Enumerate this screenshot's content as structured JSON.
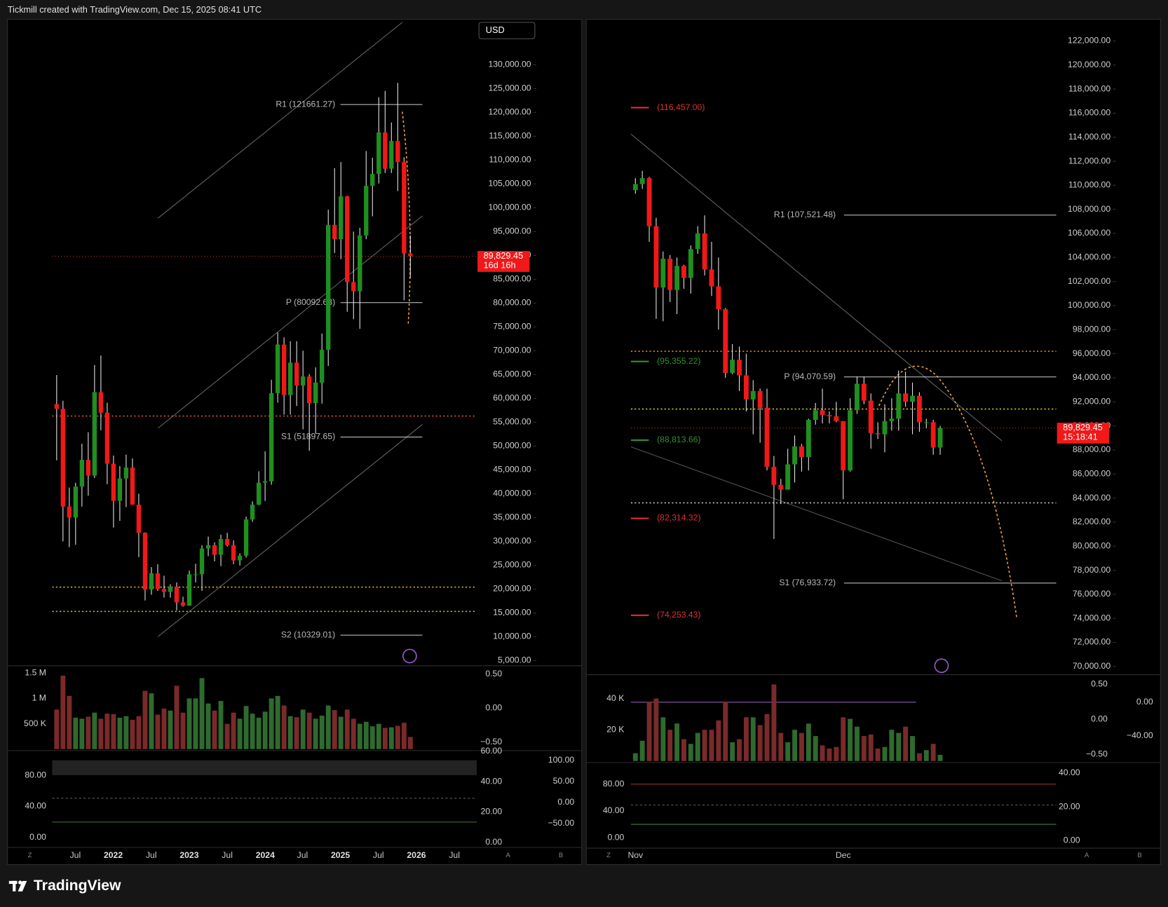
{
  "header": "Tickmill created with TradingView.com, Dec 15, 2025 08:41 UTC",
  "logo": "TradingView",
  "currency": "USD",
  "buttons": {
    "z": "Z",
    "a": "A",
    "b": "B"
  },
  "left": {
    "ylim": [
      4062.5,
      139375
    ],
    "yticks": [
      {
        "value": 130000,
        "label": "130,000.00"
      },
      {
        "value": 125000,
        "label": "125,000.00"
      },
      {
        "value": 120000,
        "label": "120,000.00"
      },
      {
        "value": 115000,
        "label": "115,000.00"
      },
      {
        "value": 110000,
        "label": "110,000.00"
      },
      {
        "value": 105000,
        "label": "105,000.00"
      },
      {
        "value": 100000,
        "label": "100,000.00"
      },
      {
        "value": 95000,
        "label": "95,000.00"
      },
      {
        "value": 90000,
        "label": "90,000.00"
      },
      {
        "value": 85000,
        "label": "85,000.00"
      },
      {
        "value": 80000,
        "label": "80,000.00"
      },
      {
        "value": 75000,
        "label": "75,000.00"
      },
      {
        "value": 70000,
        "label": "70,000.00"
      },
      {
        "value": 65000,
        "label": "65,000.00"
      },
      {
        "value": 60000,
        "label": "60,000.00"
      },
      {
        "value": 55000,
        "label": "55,000.00"
      },
      {
        "value": 50000,
        "label": "50,000.00"
      },
      {
        "value": 45000,
        "label": "45,000.00"
      },
      {
        "value": 40000,
        "label": "40,000.00"
      },
      {
        "value": 35000,
        "label": "35,000.00"
      },
      {
        "value": 30000,
        "label": "30,000.00"
      },
      {
        "value": 25000,
        "label": "25,000.00"
      },
      {
        "value": 20000,
        "label": "20,000.00"
      },
      {
        "value": 15000,
        "label": "15,000.00"
      },
      {
        "value": 10000,
        "label": "10,000.00"
      },
      {
        "value": 5000,
        "label": "5,000.00"
      }
    ],
    "candles": [
      [
        58800,
        64900,
        47000,
        57800
      ],
      [
        57800,
        59500,
        30000,
        37300
      ],
      [
        37300,
        41300,
        28800,
        35000
      ],
      [
        35000,
        42300,
        29300,
        41500
      ],
      [
        41500,
        50500,
        37300,
        47100
      ],
      [
        47100,
        52900,
        39600,
        43800
      ],
      [
        43800,
        67000,
        43300,
        61300
      ],
      [
        61300,
        69000,
        53300,
        57000
      ],
      [
        57000,
        59100,
        42000,
        46300
      ],
      [
        46300,
        48000,
        32900,
        38500
      ],
      [
        38500,
        45800,
        34300,
        43200
      ],
      [
        43200,
        48200,
        37200,
        45500
      ],
      [
        45500,
        47400,
        37700,
        37700
      ],
      [
        37700,
        40000,
        26700,
        31800
      ],
      [
        31800,
        31900,
        17600,
        19900
      ],
      [
        19900,
        24600,
        18800,
        23300
      ],
      [
        23300,
        25200,
        19600,
        20000
      ],
      [
        20000,
        22800,
        18200,
        19400
      ],
      [
        19400,
        21000,
        18200,
        20500
      ],
      [
        20500,
        21400,
        15500,
        17200
      ],
      [
        17200,
        18400,
        16300,
        16500
      ],
      [
        16500,
        23900,
        16500,
        23100
      ],
      [
        23100,
        25300,
        21400,
        23100
      ],
      [
        23100,
        29200,
        19600,
        28500
      ],
      [
        28500,
        31000,
        26900,
        29200
      ],
      [
        29200,
        29800,
        25800,
        27200
      ],
      [
        27200,
        31400,
        24800,
        30500
      ],
      [
        30500,
        31800,
        28900,
        29200
      ],
      [
        29200,
        30200,
        25200,
        26000
      ],
      [
        26000,
        27500,
        24900,
        27000
      ],
      [
        27000,
        35200,
        26600,
        34600
      ],
      [
        34600,
        38400,
        34100,
        37700
      ],
      [
        37700,
        44700,
        37600,
        42300
      ],
      [
        42300,
        48900,
        38500,
        42600
      ],
      [
        42600,
        63900,
        41900,
        61100
      ],
      [
        61100,
        73800,
        59100,
        71300
      ],
      [
        71300,
        72800,
        56600,
        60700
      ],
      [
        60700,
        72000,
        56600,
        67500
      ],
      [
        67500,
        72000,
        58400,
        62700
      ],
      [
        62700,
        70000,
        53500,
        64600
      ],
      [
        64600,
        65100,
        49000,
        59000
      ],
      [
        59000,
        66500,
        52600,
        63300
      ],
      [
        63300,
        73600,
        58900,
        70200
      ],
      [
        70200,
        99600,
        66800,
        96400
      ],
      [
        96400,
        108300,
        90500,
        93400
      ],
      [
        93400,
        109600,
        89200,
        102400
      ],
      [
        102400,
        102500,
        78200,
        84400
      ],
      [
        84400,
        95000,
        76600,
        82500
      ],
      [
        82500,
        95800,
        74600,
        94200
      ],
      [
        94200,
        111900,
        93400,
        104600
      ],
      [
        104600,
        110500,
        98200,
        107100
      ],
      [
        107100,
        123200,
        105100,
        115800
      ],
      [
        115800,
        124500,
        107300,
        108200
      ],
      [
        108200,
        117900,
        107300,
        114000
      ],
      [
        114000,
        126200,
        103500,
        109600
      ],
      [
        109600,
        110600,
        80600,
        90400
      ],
      [
        90400,
        94200,
        85300,
        89829.45
      ]
    ],
    "volume": {
      "lim": [
        0,
        1630000
      ],
      "ticks": [
        {
          "value": 1500000,
          "label": "1.5 M"
        },
        {
          "value": 1000000,
          "label": "1 M"
        },
        {
          "value": 500000,
          "label": "500 K"
        }
      ],
      "values": [
        780000,
        1450000,
        1050000,
        620000,
        600000,
        640000,
        720000,
        600000,
        700000,
        690000,
        620000,
        650000,
        580000,
        650000,
        1150000,
        1100000,
        680000,
        800000,
        760000,
        1250000,
        720000,
        1000000,
        1000000,
        1400000,
        900000,
        760000,
        950000,
        500000,
        720000,
        600000,
        850000,
        700000,
        620000,
        740000,
        1000000,
        1050000,
        860000,
        650000,
        630000,
        780000,
        720000,
        600000,
        660000,
        860000,
        770000,
        640000,
        780000,
        600000,
        500000,
        540000,
        450000,
        500000,
        420000,
        430000,
        460000,
        520000,
        240000
      ]
    },
    "volume_scales": [
      {
        "lim": [
          -0.6,
          0.61
        ],
        "ticks": [
          {
            "value": 0.5,
            "label": "0.50"
          },
          {
            "value": 0,
            "label": "0.00"
          },
          {
            "value": -0.5,
            "label": "−0.50"
          }
        ]
      }
    ],
    "osc_scales": [
      {
        "lim": [
          -12,
          111
        ],
        "ticks": [
          {
            "value": 80,
            "label": "80.00"
          },
          {
            "value": 40,
            "label": "40.00"
          },
          {
            "value": 0,
            "label": "0.00"
          }
        ]
      },
      {
        "lim": [
          -2.9,
          60
        ],
        "ticks": [
          {
            "value": 60,
            "label": "60.00"
          },
          {
            "value": 40,
            "label": "40.00"
          },
          {
            "value": 20,
            "label": "20.00"
          },
          {
            "value": 0,
            "label": "0.00"
          }
        ]
      },
      {
        "lim": [
          -105,
          121
        ],
        "ticks": [
          {
            "value": 100,
            "label": "100.00"
          },
          {
            "value": 50,
            "label": "50.00"
          },
          {
            "value": 0,
            "label": "0.00"
          },
          {
            "value": -50,
            "label": "−50.00"
          }
        ]
      }
    ],
    "levels": [
      {
        "label": "R1 (121661.27)",
        "value": 121661.27
      },
      {
        "label": "P (80092.63)",
        "value": 80092.63
      },
      {
        "label": "S1 (51897.65)",
        "value": 51897.65
      },
      {
        "label": "S2 (10329.01)",
        "value": 10329.01
      }
    ],
    "marks": [],
    "dotted": [
      {
        "value": 56300,
        "color": "#e05030"
      },
      {
        "value": 20400,
        "color": "#e8c020"
      },
      {
        "value": 15300,
        "color": "#9acd32"
      }
    ],
    "last": {
      "value": 89829.45,
      "label": "89,829.45",
      "countdown": "16d 16h"
    },
    "time_labels": [
      "Jul",
      "2022",
      "Jul",
      "2023",
      "Jul",
      "2024",
      "Jul",
      "2025",
      "Jul",
      "2026",
      "Jul"
    ]
  },
  "right": {
    "ylim": [
      69381,
      123733
    ],
    "yticks": [
      {
        "value": 122000,
        "label": "122,000.00"
      },
      {
        "value": 120000,
        "label": "120,000.00"
      },
      {
        "value": 118000,
        "label": "118,000.00"
      },
      {
        "value": 116000,
        "label": "116,000.00"
      },
      {
        "value": 114000,
        "label": "114,000.00"
      },
      {
        "value": 112000,
        "label": "112,000.00"
      },
      {
        "value": 110000,
        "label": "110,000.00"
      },
      {
        "value": 108000,
        "label": "108,000.00"
      },
      {
        "value": 106000,
        "label": "106,000.00"
      },
      {
        "value": 104000,
        "label": "104,000.00"
      },
      {
        "value": 102000,
        "label": "102,000.00"
      },
      {
        "value": 100000,
        "label": "100,000.00"
      },
      {
        "value": 98000,
        "label": "98,000.00"
      },
      {
        "value": 96000,
        "label": "96,000.00"
      },
      {
        "value": 94000,
        "label": "94,000.00"
      },
      {
        "value": 92000,
        "label": "92,000.00"
      },
      {
        "value": 90000,
        "label": "90,000.00"
      },
      {
        "value": 88000,
        "label": "88,000.00"
      },
      {
        "value": 86000,
        "label": "86,000.00"
      },
      {
        "value": 84000,
        "label": "84,000.00"
      },
      {
        "value": 82000,
        "label": "82,000.00"
      },
      {
        "value": 80000,
        "label": "80,000.00"
      },
      {
        "value": 78000,
        "label": "78,000.00"
      },
      {
        "value": 76000,
        "label": "76,000.00"
      },
      {
        "value": 74000,
        "label": "74,000.00"
      },
      {
        "value": 72000,
        "label": "72,000.00"
      },
      {
        "value": 70000,
        "label": "70,000.00"
      }
    ],
    "candles": [
      [
        109600,
        110600,
        109300,
        110100
      ],
      [
        110100,
        111200,
        109700,
        110600
      ],
      [
        110600,
        110700,
        105300,
        106600
      ],
      [
        106600,
        107300,
        98900,
        101500
      ],
      [
        101500,
        104500,
        98700,
        103900
      ],
      [
        103900,
        104200,
        100300,
        101300
      ],
      [
        101300,
        104000,
        99300,
        103300
      ],
      [
        103300,
        103400,
        101400,
        102300
      ],
      [
        102300,
        105000,
        101000,
        104700
      ],
      [
        104700,
        106600,
        104300,
        106000
      ],
      [
        106000,
        107500,
        102500,
        103000
      ],
      [
        103000,
        105300,
        100800,
        101600
      ],
      [
        101600,
        104000,
        98000,
        99700
      ],
      [
        99700,
        99800,
        94000,
        94400
      ],
      [
        94400,
        96800,
        94300,
        95500
      ],
      [
        95500,
        96600,
        92900,
        94200
      ],
      [
        94200,
        96000,
        91200,
        92200
      ],
      [
        92200,
        93800,
        89300,
        92900
      ],
      [
        92900,
        93100,
        88600,
        91500
      ],
      [
        91500,
        93100,
        86300,
        86600
      ],
      [
        86600,
        87500,
        80600,
        85100
      ],
      [
        85100,
        85600,
        83500,
        84700
      ],
      [
        84700,
        88100,
        84700,
        86800
      ],
      [
        86800,
        89200,
        85300,
        88300
      ],
      [
        88300,
        88500,
        86200,
        87400
      ],
      [
        87400,
        90600,
        86300,
        90500
      ],
      [
        90500,
        91900,
        90100,
        91300
      ],
      [
        91300,
        93100,
        90200,
        90900
      ],
      [
        90900,
        91200,
        90200,
        90800
      ],
      [
        90800,
        92000,
        90300,
        90400
      ],
      [
        90400,
        90400,
        83900,
        86300
      ],
      [
        86300,
        92300,
        86200,
        91300
      ],
      [
        91300,
        94100,
        91000,
        93500
      ],
      [
        93500,
        94100,
        91800,
        92100
      ],
      [
        92100,
        92700,
        88100,
        89400
      ],
      [
        89400,
        90300,
        88900,
        89300
      ],
      [
        89300,
        91800,
        87800,
        90400
      ],
      [
        90400,
        92300,
        89600,
        90600
      ],
      [
        90600,
        94600,
        89600,
        92700
      ],
      [
        92700,
        94500,
        91600,
        92000
      ],
      [
        92000,
        93600,
        89300,
        92500
      ],
      [
        92500,
        92800,
        89500,
        90300
      ],
      [
        90300,
        90600,
        89800,
        90300
      ],
      [
        90300,
        90500,
        87600,
        88200
      ],
      [
        88200,
        90000,
        87600,
        89829.45
      ]
    ],
    "volume": {
      "lim": [
        0,
        54300
      ],
      "ticks": [
        {
          "value": 40000,
          "label": "40 K"
        },
        {
          "value": 20000,
          "label": "20 K"
        }
      ],
      "values": [
        5000,
        13000,
        38000,
        40000,
        28000,
        20000,
        24000,
        14000,
        11000,
        18000,
        20000,
        20000,
        26000,
        38000,
        12000,
        14000,
        28000,
        28000,
        23000,
        30000,
        49000,
        18000,
        12000,
        20000,
        18000,
        24000,
        16000,
        10000,
        8000,
        9000,
        28000,
        27000,
        22000,
        16000,
        17000,
        8000,
        9000,
        20000,
        18000,
        22000,
        16000,
        5000,
        7000,
        11000,
        4000
      ]
    },
    "volume_scales": [
      {
        "lim": [
          -0.596,
          0.617
        ],
        "ticks": [
          {
            "value": 0.5,
            "label": "0.50"
          },
          {
            "value": 0,
            "label": "0.00"
          },
          {
            "value": -0.5,
            "label": "−0.50"
          }
        ]
      },
      {
        "lim": [
          -70,
          31
        ],
        "ticks": [
          {
            "value": 0,
            "label": "0.00"
          },
          {
            "value": -40,
            "label": "−40.00"
          }
        ]
      }
    ],
    "osc_scales": [
      {
        "lim": [
          -14.4,
          111
        ],
        "ticks": [
          {
            "value": 80,
            "label": "80.00"
          },
          {
            "value": 40,
            "label": "40.00"
          },
          {
            "value": 0,
            "label": "0.00"
          }
        ]
      },
      {
        "lim": [
          -4,
          45.7
        ],
        "ticks": [
          {
            "value": 40,
            "label": "40.00"
          },
          {
            "value": 20,
            "label": "20.00"
          },
          {
            "value": 0,
            "label": "0.00"
          }
        ]
      }
    ],
    "levels": [
      {
        "label": "R1 (107,521.48)",
        "value": 107521.48
      },
      {
        "label": "P (94,070.59)",
        "value": 94070.59
      },
      {
        "label": "S1 (76,933.72)",
        "value": 76933.72
      }
    ],
    "marks": [
      {
        "label": "(116,457.00)",
        "value": 116457,
        "color": "#e03030"
      },
      {
        "label": "(95,355.22)",
        "value": 95355.22,
        "color": "#2f8f2f"
      },
      {
        "label": "(88,813.66)",
        "value": 88813.66,
        "color": "#2f8f2f"
      },
      {
        "label": "(82,314.32)",
        "value": 82314.32,
        "color": "#e03030"
      },
      {
        "label": "(74,253.43)",
        "value": 74253.43,
        "color": "#e03030"
      }
    ],
    "dotted": [
      {
        "value": 96200,
        "color": "#e08030"
      },
      {
        "value": 91400,
        "color": "#e8c020"
      },
      {
        "value": 83600,
        "color": "#c0c0c0"
      }
    ],
    "last": {
      "value": 89829.45,
      "label": "89,829.45",
      "countdown": "15:18:41"
    },
    "time_labels": [
      "Nov",
      "Dec"
    ]
  }
}
